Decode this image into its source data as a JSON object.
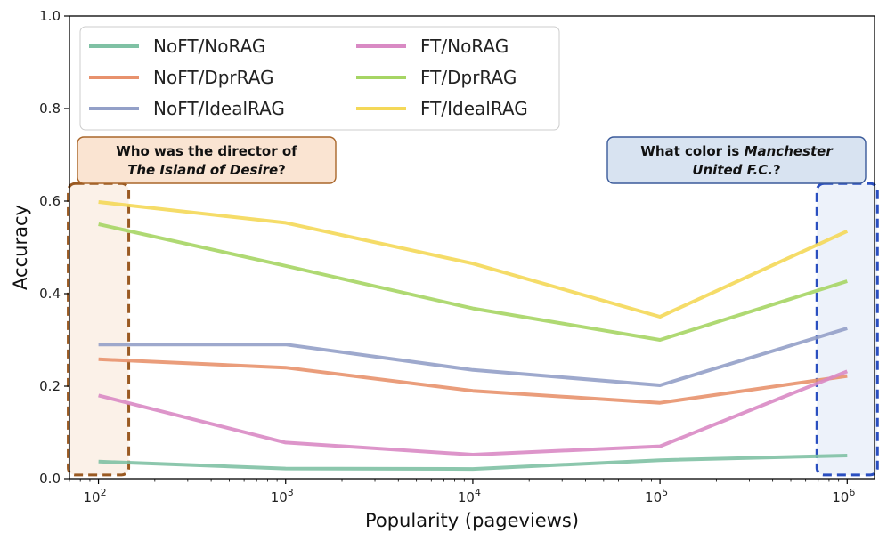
{
  "chart_data": {
    "type": "line",
    "title": "",
    "xlabel": "Popularity (pageviews)",
    "ylabel": "Accuracy",
    "x": [
      100,
      1000,
      10000,
      100000,
      1000000
    ],
    "xscale": "log",
    "xlim": [
      70,
      1400000
    ],
    "ylim": [
      0,
      1
    ],
    "xtick_labels": [
      {
        "base": "10",
        "exp": "2"
      },
      {
        "base": "10",
        "exp": "3"
      },
      {
        "base": "10",
        "exp": "4"
      },
      {
        "base": "10",
        "exp": "5"
      },
      {
        "base": "10",
        "exp": "6"
      }
    ],
    "ytick_labels": [
      "0.0",
      "0.2",
      "0.4",
      "0.6",
      "0.8",
      "1.0"
    ],
    "grid": false,
    "legend_position": "top-left",
    "series": [
      {
        "name": "NoFT/NoRAG",
        "color": "#7fc1a4",
        "values": [
          0.037,
          0.022,
          0.021,
          0.04,
          0.05
        ]
      },
      {
        "name": "NoFT/DprRAG",
        "color": "#e8926d",
        "values": [
          0.258,
          0.24,
          0.19,
          0.164,
          0.222
        ]
      },
      {
        "name": "NoFT/IdealRAG",
        "color": "#93a0c8",
        "values": [
          0.29,
          0.29,
          0.235,
          0.202,
          0.325
        ]
      },
      {
        "name": "FT/NoRAG",
        "color": "#d98ac4",
        "values": [
          0.18,
          0.078,
          0.052,
          0.07,
          0.232
        ]
      },
      {
        "name": "FT/DprRAG",
        "color": "#a6d564",
        "values": [
          0.55,
          0.46,
          0.368,
          0.3,
          0.427
        ]
      },
      {
        "name": "FT/IdealRAG",
        "color": "#f4d858",
        "values": [
          0.598,
          0.553,
          0.465,
          0.35,
          0.535
        ]
      }
    ],
    "annotations": [
      {
        "lines": [
          [
            {
              "text": "Who was the director of",
              "italic": false
            }
          ],
          [
            {
              "text": "The Island of Desire",
              "italic": true
            },
            {
              "text": "?",
              "italic": false
            }
          ]
        ],
        "fill": "#fae4d2",
        "border": "#a9662a",
        "highlight_x": 100,
        "highlight_fill": "#fbf1e8",
        "highlight_border": "#9a5a22"
      },
      {
        "lines": [
          [
            {
              "text": "What color is ",
              "italic": false
            },
            {
              "text": "Manchester",
              "italic": true
            }
          ],
          [
            {
              "text": "United F.C.",
              "italic": true
            },
            {
              "text": "?",
              "italic": false
            }
          ]
        ],
        "fill": "#d8e3f1",
        "border": "#3a5a9a",
        "highlight_x": 1000000,
        "highlight_fill": "#edf2fa",
        "highlight_border": "#2a4fc0"
      }
    ]
  }
}
